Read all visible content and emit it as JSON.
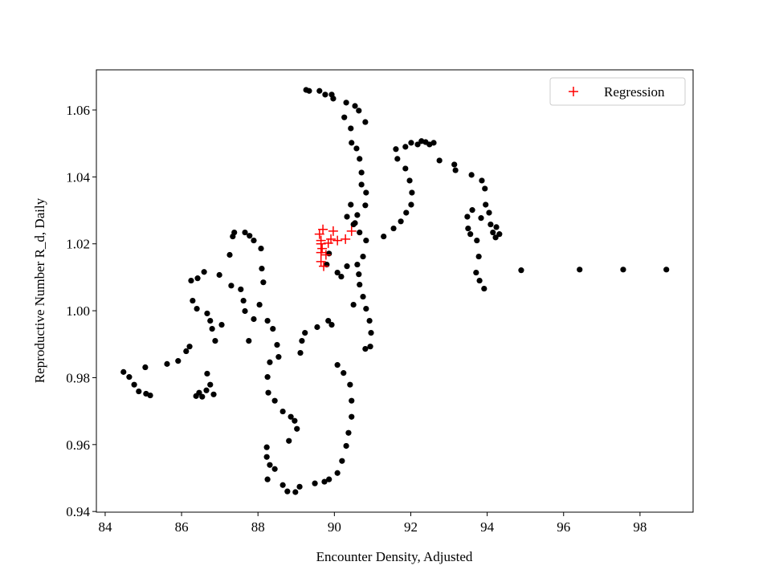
{
  "chart_data": {
    "type": "scatter",
    "x_label": "Encounter Density, Adjusted",
    "y_label": "Reproductive Number R_d, Daily",
    "xlim": [
      83.77,
      99.39
    ],
    "ylim": [
      0.9398,
      1.072
    ],
    "xticks": [
      84,
      86,
      88,
      90,
      92,
      94,
      96,
      98
    ],
    "yticks": [
      0.94,
      0.96,
      0.98,
      {
        "value": 1,
        "label": "1.00"
      },
      1.02,
      1.04,
      1.06
    ],
    "legend": "upper right",
    "series": [
      {
        "color": "#000000",
        "marker": "o",
        "x": [
          84.48,
          84.63,
          84.76,
          84.88,
          85.07,
          85.18,
          85.05,
          85.62,
          85.91,
          86.12,
          86.21,
          86.29,
          86.4,
          86.25,
          86.42,
          86.59,
          86.67,
          86.75,
          86.8,
          86.88,
          87.05,
          86.99,
          87.3,
          87.55,
          87.62,
          87.66,
          87.76,
          87.26,
          87.34,
          87.38,
          87.66,
          87.78,
          87.89,
          88.08,
          88.1,
          88.14,
          88.04,
          87.89,
          88.25,
          88.39,
          88.5,
          88.54,
          88.31,
          88.25,
          88.27,
          88.44,
          88.65,
          88.86,
          88.96,
          89.02,
          88.81,
          88.23,
          88.23,
          88.31,
          88.44,
          88.25,
          88.65,
          88.77,
          88.98,
          89.09,
          89.23,
          89.15,
          89.11,
          89.55,
          89.84,
          89.93,
          90.08,
          90.24,
          90.41,
          90.45,
          90.45,
          90.37,
          90.31,
          90.2,
          90.08,
          89.86,
          89.74,
          89.49,
          86.46,
          86.54,
          86.65,
          86.75,
          86.84,
          86.67,
          86.38,
          89.26,
          89.34,
          89.61,
          89.76,
          89.93,
          89.97,
          90.31,
          90.54,
          90.64,
          90.81,
          90.26,
          90.43,
          90.45,
          90.58,
          90.66,
          90.71,
          90.71,
          90.83,
          90.81,
          90.6,
          90.5,
          90.66,
          90.83,
          90.75,
          90.6,
          90.64,
          90.66,
          90.75,
          90.83,
          90.92,
          90.96,
          90.94,
          90.81,
          90.5,
          90.33,
          90.18,
          90.08,
          89.8,
          89.86,
          90.43,
          90.33,
          90.54,
          91.29,
          91.55,
          91.74,
          91.88,
          92.01,
          92.03,
          91.97,
          91.86,
          91.65,
          91.61,
          91.86,
          92.01,
          92.18,
          92.28,
          92.39,
          92.49,
          92.6,
          92.75,
          93.14,
          93.17,
          93.59,
          93.86,
          93.94,
          93.96,
          94.05,
          94.09,
          94.15,
          94.24,
          94.32,
          94.22,
          93.84,
          93.61,
          93.48,
          93.56,
          93.73,
          93.78,
          93.71,
          93.8,
          93.92,
          93.5,
          94.89,
          96.42,
          97.56,
          98.69
        ],
        "values": [
          0.9817,
          0.9802,
          0.9779,
          0.9759,
          0.9752,
          0.9747,
          0.9831,
          0.9841,
          0.985,
          0.9879,
          0.9893,
          1.003,
          1.0006,
          1.009,
          1.0097,
          1.0116,
          0.9992,
          0.997,
          0.9946,
          0.991,
          0.9958,
          1.0107,
          1.0075,
          1.0064,
          1.003,
          0.9999,
          0.991,
          1.0167,
          1.0222,
          1.0234,
          1.0234,
          1.0224,
          1.021,
          1.0186,
          1.0126,
          1.0085,
          1.0018,
          0.9975,
          0.997,
          0.9946,
          0.9898,
          0.9862,
          0.9846,
          0.9802,
          0.9755,
          0.9731,
          0.9699,
          0.9683,
          0.9671,
          0.9647,
          0.9611,
          0.9592,
          0.9563,
          0.9539,
          0.9527,
          0.9496,
          0.9479,
          0.946,
          0.9458,
          0.9474,
          0.9934,
          0.991,
          0.9874,
          0.9951,
          0.997,
          0.9958,
          0.9838,
          0.9814,
          0.9779,
          0.9731,
          0.9683,
          0.9635,
          0.9596,
          0.9551,
          0.9515,
          0.9496,
          0.9489,
          0.9484,
          0.9755,
          0.9743,
          0.9762,
          0.9779,
          0.975,
          0.9812,
          0.9745,
          1.066,
          1.0657,
          1.0657,
          1.0646,
          1.0646,
          1.0634,
          1.0622,
          1.0612,
          1.0598,
          1.0564,
          1.0578,
          1.0545,
          1.0502,
          1.0485,
          1.0454,
          1.0413,
          1.0377,
          1.0353,
          1.0315,
          1.0286,
          1.0258,
          1.0234,
          1.021,
          1.0162,
          1.0138,
          1.0109,
          1.0078,
          1.0042,
          1.0006,
          0.997,
          0.9934,
          0.9893,
          0.9886,
          1.0018,
          1.0133,
          1.0102,
          1.0114,
          1.0138,
          1.0171,
          1.0317,
          1.0281,
          1.0262,
          1.0222,
          1.0246,
          1.0267,
          1.0293,
          1.0317,
          1.0353,
          1.0389,
          1.0425,
          1.0454,
          1.0483,
          1.049,
          1.0502,
          1.0497,
          1.0507,
          1.0504,
          1.0497,
          1.0502,
          1.0449,
          1.0437,
          1.042,
          1.0406,
          1.0389,
          1.0365,
          1.0317,
          1.0293,
          1.0258,
          1.0234,
          1.025,
          1.0229,
          1.0219,
          1.0277,
          1.0301,
          1.0281,
          1.0229,
          1.021,
          1.0162,
          1.0114,
          1.009,
          1.0066,
          1.0246,
          1.0121,
          1.0123,
          1.0123,
          1.0123
        ]
      },
      {
        "name": "Regression",
        "color": "#ff0000",
        "marker": "+",
        "x": [
          89.61,
          89.7,
          89.65,
          89.68,
          89.65,
          89.72,
          89.78,
          89.84,
          89.91,
          89.97,
          90.08,
          90.29,
          90.45,
          89.65,
          89.65
        ],
        "values": [
          1.0229,
          1.0243,
          1.021,
          1.0186,
          1.0147,
          1.0133,
          1.0167,
          1.0202,
          1.0214,
          1.0238,
          1.021,
          1.0214,
          1.0238,
          1.02,
          1.0174
        ]
      }
    ]
  }
}
